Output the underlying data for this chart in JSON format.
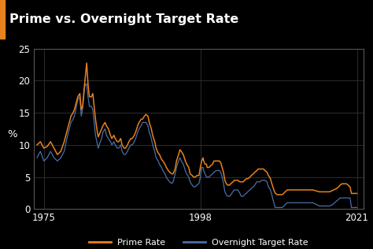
{
  "title": "Prime vs. Overnight Target Rate",
  "ylabel": "%",
  "background_color": "#000000",
  "plot_bg_color": "#000000",
  "title_color": "#ffffff",
  "axis_color": "#ffffff",
  "grid_color": "#333333",
  "orange_color": "#E8821E",
  "blue_color": "#4B6FA8",
  "legend_prime": "Prime Rate",
  "legend_overnight": "Overnight Target Rate",
  "xlim": [
    1973.5,
    2022
  ],
  "ylim": [
    0,
    25
  ],
  "yticks": [
    0,
    5,
    10,
    15,
    20,
    25
  ],
  "xticks": [
    1975,
    1998,
    2021
  ],
  "prime_data": [
    [
      1974.0,
      10.0
    ],
    [
      1974.5,
      10.5
    ],
    [
      1975.0,
      9.5
    ],
    [
      1975.5,
      9.75
    ],
    [
      1976.0,
      10.5
    ],
    [
      1976.5,
      9.5
    ],
    [
      1977.0,
      8.5
    ],
    [
      1977.5,
      9.0
    ],
    [
      1978.0,
      10.5
    ],
    [
      1978.5,
      12.5
    ],
    [
      1979.0,
      14.5
    ],
    [
      1979.3,
      15.0
    ],
    [
      1979.5,
      15.5
    ],
    [
      1980.0,
      17.5
    ],
    [
      1980.3,
      18.0
    ],
    [
      1980.5,
      15.5
    ],
    [
      1980.7,
      16.0
    ],
    [
      1981.0,
      19.5
    ],
    [
      1981.3,
      22.75
    ],
    [
      1981.5,
      19.5
    ],
    [
      1981.7,
      17.5
    ],
    [
      1982.0,
      17.5
    ],
    [
      1982.2,
      18.0
    ],
    [
      1982.4,
      16.0
    ],
    [
      1982.6,
      14.0
    ],
    [
      1982.8,
      12.5
    ],
    [
      1983.0,
      11.25
    ],
    [
      1983.3,
      12.0
    ],
    [
      1983.5,
      12.5
    ],
    [
      1983.7,
      13.0
    ],
    [
      1984.0,
      13.5
    ],
    [
      1984.2,
      13.0
    ],
    [
      1984.5,
      12.5
    ],
    [
      1984.8,
      11.5
    ],
    [
      1985.0,
      11.0
    ],
    [
      1985.3,
      11.5
    ],
    [
      1985.5,
      11.0
    ],
    [
      1985.8,
      10.5
    ],
    [
      1986.0,
      10.5
    ],
    [
      1986.3,
      11.0
    ],
    [
      1986.5,
      10.0
    ],
    [
      1986.8,
      9.5
    ],
    [
      1987.0,
      9.5
    ],
    [
      1987.3,
      10.0
    ],
    [
      1987.5,
      10.5
    ],
    [
      1987.8,
      11.0
    ],
    [
      1988.0,
      11.0
    ],
    [
      1988.3,
      11.5
    ],
    [
      1988.5,
      12.0
    ],
    [
      1988.8,
      13.0
    ],
    [
      1989.0,
      13.5
    ],
    [
      1989.3,
      14.0
    ],
    [
      1989.5,
      14.0
    ],
    [
      1989.8,
      14.5
    ],
    [
      1990.0,
      14.75
    ],
    [
      1990.3,
      14.5
    ],
    [
      1990.5,
      13.5
    ],
    [
      1990.8,
      12.5
    ],
    [
      1991.0,
      11.5
    ],
    [
      1991.3,
      10.5
    ],
    [
      1991.5,
      9.5
    ],
    [
      1991.8,
      8.75
    ],
    [
      1992.0,
      8.5
    ],
    [
      1992.3,
      7.75
    ],
    [
      1992.5,
      7.5
    ],
    [
      1992.8,
      7.0
    ],
    [
      1993.0,
      6.5
    ],
    [
      1993.3,
      6.0
    ],
    [
      1993.5,
      5.75
    ],
    [
      1993.8,
      5.5
    ],
    [
      1994.0,
      5.5
    ],
    [
      1994.3,
      6.25
    ],
    [
      1994.5,
      7.5
    ],
    [
      1994.8,
      8.5
    ],
    [
      1995.0,
      9.25
    ],
    [
      1995.2,
      9.0
    ],
    [
      1995.5,
      8.5
    ],
    [
      1995.8,
      7.5
    ],
    [
      1996.0,
      7.0
    ],
    [
      1996.3,
      6.5
    ],
    [
      1996.5,
      5.5
    ],
    [
      1996.8,
      5.25
    ],
    [
      1997.0,
      5.0
    ],
    [
      1997.3,
      5.0
    ],
    [
      1997.5,
      5.25
    ],
    [
      1997.8,
      5.25
    ],
    [
      1998.0,
      6.5
    ],
    [
      1998.2,
      7.5
    ],
    [
      1998.4,
      8.0
    ],
    [
      1998.5,
      7.5
    ],
    [
      1998.7,
      7.0
    ],
    [
      1998.9,
      7.0
    ],
    [
      1999.0,
      6.5
    ],
    [
      1999.3,
      6.5
    ],
    [
      1999.5,
      6.75
    ],
    [
      1999.8,
      7.0
    ],
    [
      2000.0,
      7.5
    ],
    [
      2000.3,
      7.5
    ],
    [
      2000.5,
      7.5
    ],
    [
      2000.8,
      7.5
    ],
    [
      2001.0,
      7.25
    ],
    [
      2001.2,
      6.5
    ],
    [
      2001.4,
      5.75
    ],
    [
      2001.6,
      4.5
    ],
    [
      2001.8,
      4.0
    ],
    [
      2002.0,
      3.75
    ],
    [
      2002.3,
      3.75
    ],
    [
      2002.5,
      4.0
    ],
    [
      2002.8,
      4.25
    ],
    [
      2003.0,
      4.5
    ],
    [
      2003.3,
      4.5
    ],
    [
      2003.5,
      4.5
    ],
    [
      2003.8,
      4.25
    ],
    [
      2004.0,
      4.25
    ],
    [
      2004.3,
      4.25
    ],
    [
      2004.5,
      4.5
    ],
    [
      2004.8,
      4.75
    ],
    [
      2005.0,
      4.75
    ],
    [
      2005.3,
      5.0
    ],
    [
      2005.5,
      5.25
    ],
    [
      2005.8,
      5.5
    ],
    [
      2006.0,
      5.75
    ],
    [
      2006.3,
      6.0
    ],
    [
      2006.5,
      6.25
    ],
    [
      2006.8,
      6.25
    ],
    [
      2007.0,
      6.25
    ],
    [
      2007.3,
      6.25
    ],
    [
      2007.5,
      6.0
    ],
    [
      2007.8,
      5.75
    ],
    [
      2008.0,
      5.25
    ],
    [
      2008.3,
      4.75
    ],
    [
      2008.5,
      4.0
    ],
    [
      2008.8,
      3.0
    ],
    [
      2009.0,
      2.5
    ],
    [
      2009.3,
      2.25
    ],
    [
      2009.5,
      2.25
    ],
    [
      2009.8,
      2.25
    ],
    [
      2010.0,
      2.25
    ],
    [
      2010.3,
      2.5
    ],
    [
      2010.5,
      2.75
    ],
    [
      2010.8,
      3.0
    ],
    [
      2011.0,
      3.0
    ],
    [
      2011.5,
      3.0
    ],
    [
      2012.0,
      3.0
    ],
    [
      2012.5,
      3.0
    ],
    [
      2013.0,
      3.0
    ],
    [
      2013.5,
      3.0
    ],
    [
      2014.0,
      3.0
    ],
    [
      2014.5,
      3.0
    ],
    [
      2015.0,
      2.85
    ],
    [
      2015.5,
      2.7
    ],
    [
      2016.0,
      2.7
    ],
    [
      2016.5,
      2.7
    ],
    [
      2017.0,
      2.7
    ],
    [
      2017.5,
      2.95
    ],
    [
      2018.0,
      3.2
    ],
    [
      2018.3,
      3.45
    ],
    [
      2018.5,
      3.7
    ],
    [
      2018.8,
      3.95
    ],
    [
      2019.0,
      3.95
    ],
    [
      2019.5,
      3.95
    ],
    [
      2020.0,
      3.45
    ],
    [
      2020.2,
      2.45
    ],
    [
      2020.4,
      2.45
    ],
    [
      2020.6,
      2.45
    ],
    [
      2021.0,
      2.45
    ]
  ],
  "overnight_data": [
    [
      1974.0,
      8.0
    ],
    [
      1974.5,
      9.0
    ],
    [
      1975.0,
      7.5
    ],
    [
      1975.5,
      8.0
    ],
    [
      1976.0,
      9.0
    ],
    [
      1976.5,
      8.0
    ],
    [
      1977.0,
      7.5
    ],
    [
      1977.5,
      8.0
    ],
    [
      1978.0,
      9.0
    ],
    [
      1978.5,
      11.5
    ],
    [
      1979.0,
      13.5
    ],
    [
      1979.3,
      14.0
    ],
    [
      1979.5,
      14.5
    ],
    [
      1980.0,
      17.0
    ],
    [
      1980.3,
      17.5
    ],
    [
      1980.5,
      14.5
    ],
    [
      1980.7,
      15.5
    ],
    [
      1981.0,
      19.0
    ],
    [
      1981.2,
      19.5
    ],
    [
      1981.3,
      19.5
    ],
    [
      1981.5,
      17.5
    ],
    [
      1981.7,
      16.0
    ],
    [
      1982.0,
      16.0
    ],
    [
      1982.2,
      15.5
    ],
    [
      1982.4,
      13.5
    ],
    [
      1982.6,
      11.5
    ],
    [
      1982.8,
      10.5
    ],
    [
      1983.0,
      9.5
    ],
    [
      1983.3,
      10.5
    ],
    [
      1983.5,
      11.0
    ],
    [
      1983.7,
      12.0
    ],
    [
      1984.0,
      12.5
    ],
    [
      1984.2,
      11.5
    ],
    [
      1984.5,
      11.0
    ],
    [
      1984.8,
      10.5
    ],
    [
      1985.0,
      10.0
    ],
    [
      1985.3,
      10.5
    ],
    [
      1985.5,
      10.0
    ],
    [
      1985.8,
      9.5
    ],
    [
      1986.0,
      9.5
    ],
    [
      1986.3,
      10.0
    ],
    [
      1986.5,
      9.0
    ],
    [
      1986.8,
      8.5
    ],
    [
      1987.0,
      8.5
    ],
    [
      1987.3,
      9.0
    ],
    [
      1987.5,
      9.5
    ],
    [
      1987.8,
      10.0
    ],
    [
      1988.0,
      10.0
    ],
    [
      1988.3,
      10.5
    ],
    [
      1988.5,
      11.0
    ],
    [
      1988.8,
      12.0
    ],
    [
      1989.0,
      12.5
    ],
    [
      1989.3,
      13.0
    ],
    [
      1989.5,
      13.5
    ],
    [
      1989.8,
      13.5
    ],
    [
      1990.0,
      13.5
    ],
    [
      1990.3,
      13.0
    ],
    [
      1990.5,
      12.0
    ],
    [
      1990.8,
      11.0
    ],
    [
      1991.0,
      10.0
    ],
    [
      1991.3,
      9.0
    ],
    [
      1991.5,
      8.0
    ],
    [
      1991.8,
      7.5
    ],
    [
      1992.0,
      7.0
    ],
    [
      1992.3,
      6.5
    ],
    [
      1992.5,
      6.0
    ],
    [
      1992.8,
      5.5
    ],
    [
      1993.0,
      5.0
    ],
    [
      1993.3,
      4.5
    ],
    [
      1993.5,
      4.25
    ],
    [
      1993.8,
      4.0
    ],
    [
      1994.0,
      4.25
    ],
    [
      1994.3,
      5.5
    ],
    [
      1994.5,
      6.5
    ],
    [
      1994.8,
      7.5
    ],
    [
      1995.0,
      8.0
    ],
    [
      1995.2,
      7.5
    ],
    [
      1995.5,
      7.0
    ],
    [
      1995.8,
      6.0
    ],
    [
      1996.0,
      5.5
    ],
    [
      1996.3,
      5.0
    ],
    [
      1996.5,
      4.25
    ],
    [
      1996.8,
      3.75
    ],
    [
      1997.0,
      3.5
    ],
    [
      1997.3,
      3.5
    ],
    [
      1997.5,
      3.75
    ],
    [
      1997.8,
      4.0
    ],
    [
      1998.0,
      5.0
    ],
    [
      1998.2,
      6.5
    ],
    [
      1998.4,
      6.5
    ],
    [
      1998.5,
      6.0
    ],
    [
      1998.7,
      5.5
    ],
    [
      1998.9,
      5.0
    ],
    [
      1999.0,
      5.0
    ],
    [
      1999.3,
      5.0
    ],
    [
      1999.5,
      5.25
    ],
    [
      1999.8,
      5.5
    ],
    [
      2000.0,
      5.75
    ],
    [
      2000.3,
      6.0
    ],
    [
      2000.5,
      6.0
    ],
    [
      2000.8,
      6.0
    ],
    [
      2001.0,
      5.75
    ],
    [
      2001.2,
      5.0
    ],
    [
      2001.4,
      4.0
    ],
    [
      2001.6,
      2.75
    ],
    [
      2001.8,
      2.25
    ],
    [
      2002.0,
      2.0
    ],
    [
      2002.3,
      2.0
    ],
    [
      2002.5,
      2.25
    ],
    [
      2002.8,
      2.75
    ],
    [
      2003.0,
      3.0
    ],
    [
      2003.3,
      3.0
    ],
    [
      2003.5,
      3.0
    ],
    [
      2003.8,
      2.5
    ],
    [
      2004.0,
      2.0
    ],
    [
      2004.3,
      2.0
    ],
    [
      2004.5,
      2.25
    ],
    [
      2004.8,
      2.5
    ],
    [
      2005.0,
      2.75
    ],
    [
      2005.3,
      3.0
    ],
    [
      2005.5,
      3.25
    ],
    [
      2005.8,
      3.5
    ],
    [
      2006.0,
      3.75
    ],
    [
      2006.3,
      4.25
    ],
    [
      2006.5,
      4.25
    ],
    [
      2006.8,
      4.25
    ],
    [
      2007.0,
      4.5
    ],
    [
      2007.3,
      4.5
    ],
    [
      2007.5,
      4.5
    ],
    [
      2007.8,
      4.25
    ],
    [
      2008.0,
      3.5
    ],
    [
      2008.3,
      3.0
    ],
    [
      2008.5,
      2.25
    ],
    [
      2008.8,
      1.0
    ],
    [
      2009.0,
      0.25
    ],
    [
      2009.3,
      0.25
    ],
    [
      2009.5,
      0.25
    ],
    [
      2009.8,
      0.25
    ],
    [
      2010.0,
      0.25
    ],
    [
      2010.3,
      0.5
    ],
    [
      2010.5,
      0.75
    ],
    [
      2010.8,
      1.0
    ],
    [
      2011.0,
      1.0
    ],
    [
      2011.5,
      1.0
    ],
    [
      2012.0,
      1.0
    ],
    [
      2012.5,
      1.0
    ],
    [
      2013.0,
      1.0
    ],
    [
      2013.5,
      1.0
    ],
    [
      2014.0,
      1.0
    ],
    [
      2014.5,
      1.0
    ],
    [
      2015.0,
      0.75
    ],
    [
      2015.5,
      0.5
    ],
    [
      2016.0,
      0.5
    ],
    [
      2016.5,
      0.5
    ],
    [
      2017.0,
      0.5
    ],
    [
      2017.5,
      0.75
    ],
    [
      2018.0,
      1.25
    ],
    [
      2018.3,
      1.5
    ],
    [
      2018.5,
      1.75
    ],
    [
      2018.8,
      1.75
    ],
    [
      2019.0,
      1.75
    ],
    [
      2019.5,
      1.75
    ],
    [
      2020.0,
      1.75
    ],
    [
      2020.2,
      0.25
    ],
    [
      2020.4,
      0.25
    ],
    [
      2020.6,
      0.25
    ],
    [
      2021.0,
      0.25
    ]
  ]
}
